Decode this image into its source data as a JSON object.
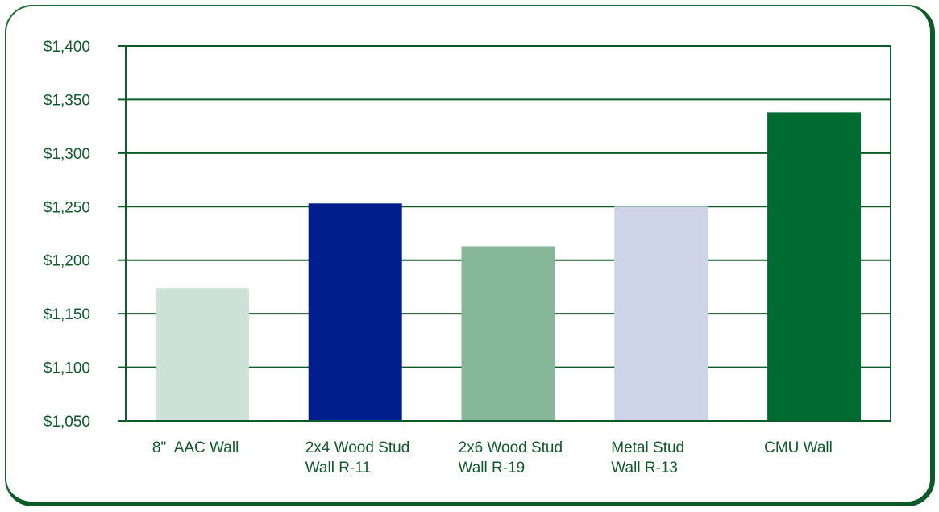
{
  "chart_data": {
    "type": "bar",
    "title": "",
    "xlabel": "",
    "ylabel": "",
    "ylim": [
      1050,
      1400
    ],
    "yticks": [
      1050,
      1100,
      1150,
      1200,
      1250,
      1300,
      1350,
      1400
    ],
    "ytick_labels": [
      "$1,050",
      "$1,100",
      "$1,150",
      "$1,200",
      "$1,250",
      "$1,300",
      "$1,350",
      "$1,400"
    ],
    "grid": true,
    "categories": [
      [
        "8\"  AAC Wall"
      ],
      [
        "2x4 Wood Stud",
        "Wall R-11"
      ],
      [
        "2x6 Wood Stud",
        "Wall R-19"
      ],
      [
        "Metal Stud",
        "Wall R-13"
      ],
      [
        "CMU Wall"
      ]
    ],
    "values": [
      1174,
      1253,
      1213,
      1250,
      1338
    ],
    "colors": [
      "#cde2d7",
      "#001f8c",
      "#86b799",
      "#ced4e8",
      "#006b30"
    ],
    "axis_color": "#0f5a2a"
  }
}
